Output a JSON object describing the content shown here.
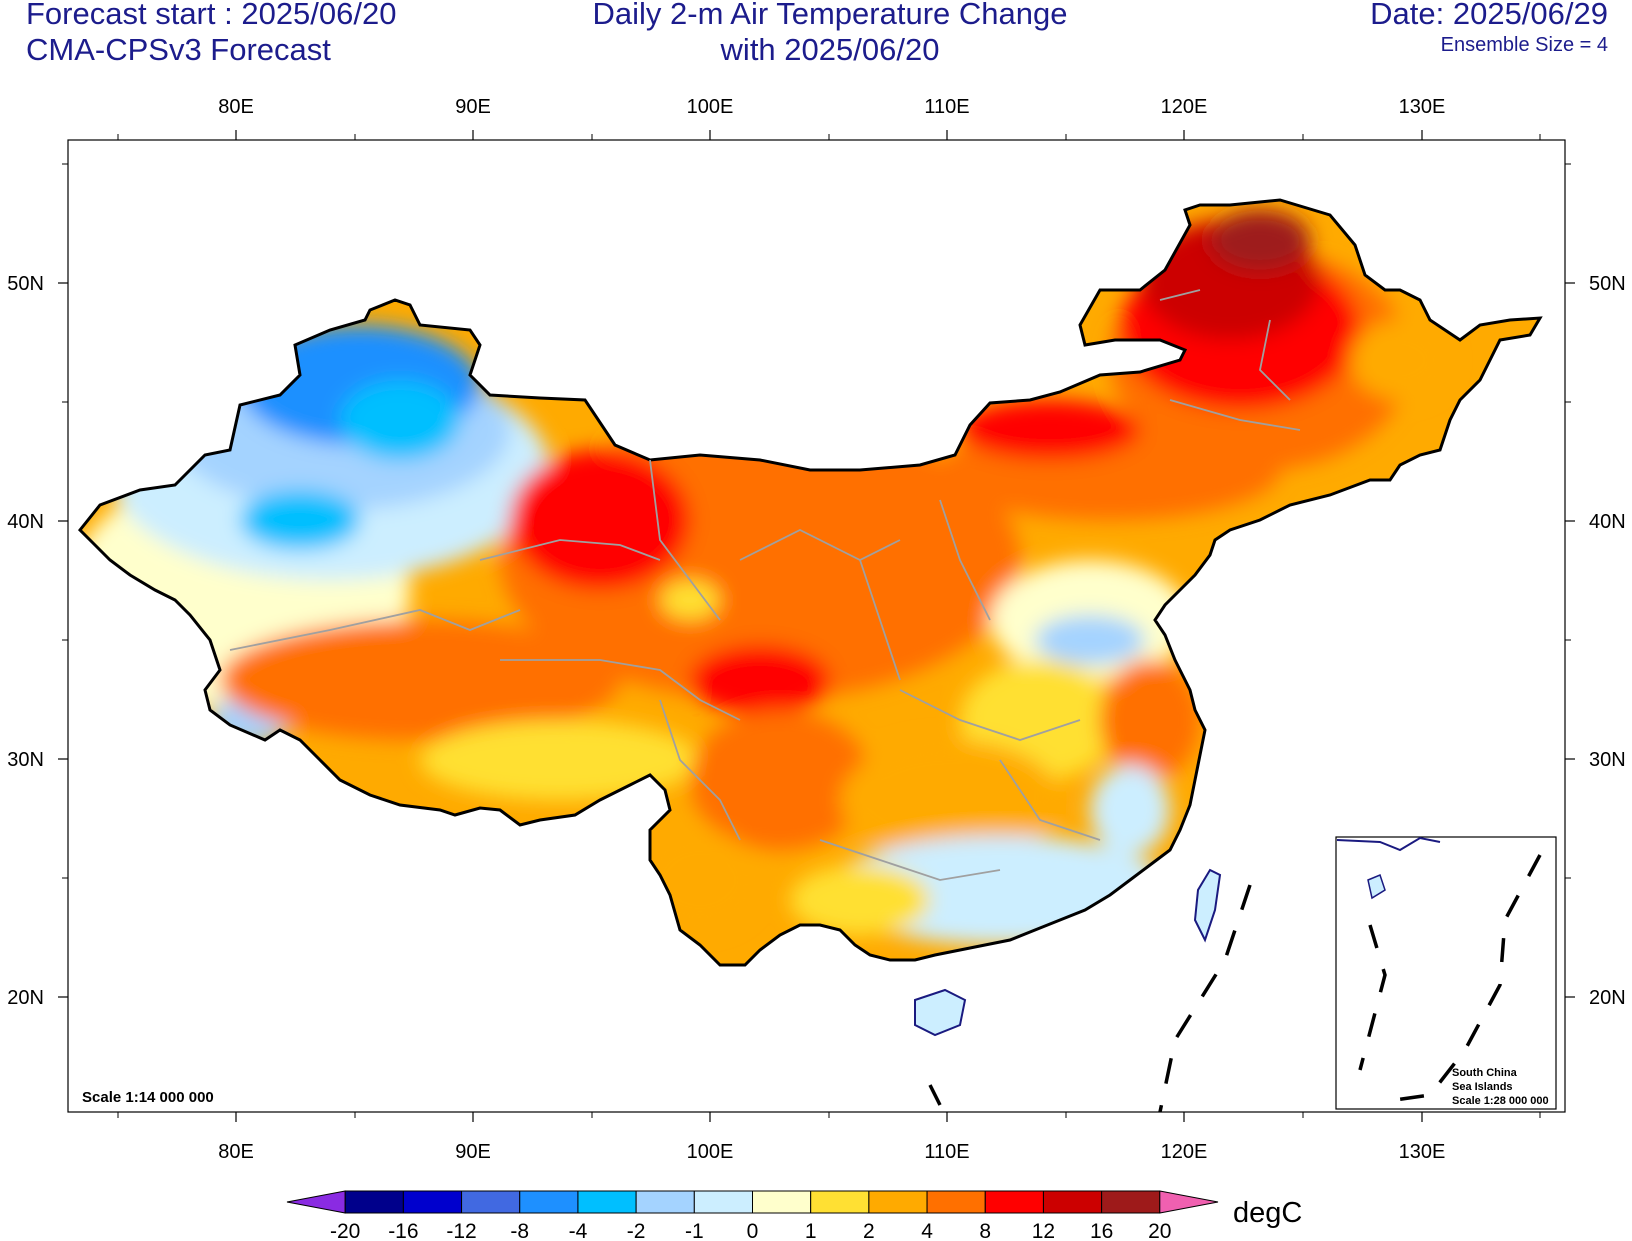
{
  "header": {
    "forecast_start": "Forecast start : 2025/06/20",
    "model": "CMA-CPSv3 Forecast",
    "title_line1": "Daily 2-m Air Temperature Change",
    "title_line2": "with 2025/06/20",
    "date": "Date: 2025/06/29",
    "ensemble": "Ensemble Size = 4"
  },
  "map": {
    "lon_labels": [
      "80E",
      "90E",
      "100E",
      "110E",
      "120E",
      "130E"
    ],
    "lat_labels": [
      "50N",
      "40N",
      "30N",
      "20N"
    ],
    "scale": "Scale 1:14 000 000",
    "inset": {
      "line1": "South China",
      "line2": "Sea Islands",
      "line3": "Scale 1:28 000 000"
    }
  },
  "colorbar": {
    "unit": "degC",
    "tick_labels": [
      "-20",
      "-16",
      "-12",
      "-8",
      "-4",
      "-2",
      "-1",
      "0",
      "1",
      "2",
      "4",
      "8",
      "12",
      "16",
      "20"
    ],
    "colors": [
      "#8a2be2",
      "#00008b",
      "#0000cd",
      "#4169e1",
      "#1e90ff",
      "#00bfff",
      "#a4d3ff",
      "#cceeff",
      "#ffffcc",
      "#ffe033",
      "#ffaa00",
      "#ff7000",
      "#ff0000",
      "#cc0000",
      "#9e1a1a",
      "#f060b0"
    ]
  },
  "colors": {
    "header_text": "#1c1c8c",
    "border": "#000000",
    "province_lines": "#a0a0a0",
    "coast_lines": "#1a1a80"
  }
}
